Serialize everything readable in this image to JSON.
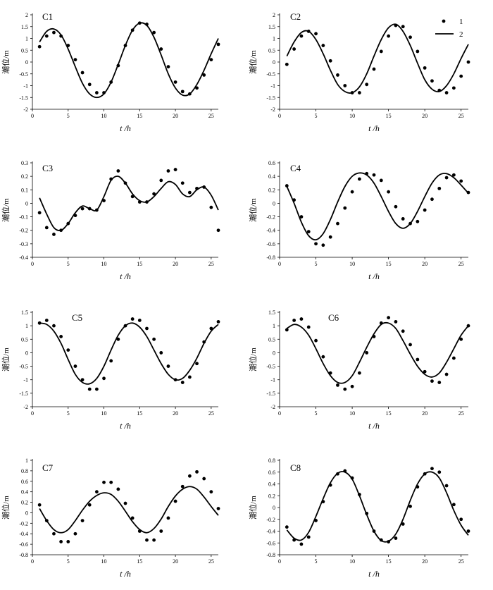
{
  "chart_data": [
    {
      "type": "line",
      "panel": "C1",
      "xlabel": "t /h",
      "ylabel": "潮位/m",
      "xlim": [
        0,
        26
      ],
      "ylim": [
        -2,
        2
      ],
      "yticks": [
        2,
        1.5,
        1,
        0.5,
        0,
        -0.5,
        -1,
        -1.5,
        -2
      ],
      "xticks": [
        0,
        5,
        10,
        15,
        20,
        25
      ],
      "series": [
        {
          "name": "1",
          "kind": "points",
          "x": [
            1,
            2,
            3,
            4,
            5,
            6,
            7,
            8,
            9,
            10,
            11,
            12,
            13,
            14,
            15,
            16,
            17,
            18,
            19,
            20,
            21,
            22,
            23,
            24,
            25,
            26
          ],
          "y": [
            0.65,
            1.1,
            1.25,
            1.1,
            0.7,
            0.1,
            -0.45,
            -0.95,
            -1.3,
            -1.3,
            -0.85,
            -0.15,
            0.7,
            1.35,
            1.65,
            1.6,
            1.25,
            0.55,
            -0.2,
            -0.85,
            -1.25,
            -1.35,
            -1.1,
            -0.55,
            0.1,
            0.75
          ]
        },
        {
          "name": "2",
          "kind": "line",
          "x": [
            1,
            2,
            3,
            4,
            5,
            6,
            7,
            8,
            9,
            10,
            11,
            12,
            13,
            14,
            15,
            16,
            17,
            18,
            19,
            20,
            21,
            22,
            23,
            24,
            25,
            26
          ],
          "y": [
            0.85,
            1.3,
            1.4,
            1.15,
            0.55,
            -0.2,
            -0.9,
            -1.35,
            -1.5,
            -1.35,
            -0.85,
            -0.1,
            0.7,
            1.35,
            1.65,
            1.55,
            1.05,
            0.3,
            -0.5,
            -1.1,
            -1.4,
            -1.35,
            -0.95,
            -0.35,
            0.35,
            1.0
          ]
        }
      ]
    },
    {
      "type": "line",
      "panel": "C2",
      "xlabel": "t /h",
      "ylabel": "潮位/m",
      "xlim": [
        0,
        26
      ],
      "ylim": [
        -2,
        2
      ],
      "yticks": [
        2,
        1.5,
        1,
        0.5,
        0,
        -0.5,
        -1,
        -1.5,
        -2
      ],
      "xticks": [
        0,
        5,
        10,
        15,
        20,
        25
      ],
      "legend": {
        "placement": "top-right",
        "entries": [
          "1",
          "2"
        ]
      },
      "series": [
        {
          "name": "1",
          "kind": "points",
          "x": [
            1,
            2,
            3,
            4,
            5,
            6,
            7,
            8,
            9,
            10,
            11,
            12,
            13,
            14,
            15,
            16,
            17,
            18,
            19,
            20,
            21,
            22,
            23,
            24,
            25,
            26
          ],
          "y": [
            -0.1,
            0.55,
            1.1,
            1.3,
            1.2,
            0.7,
            0.05,
            -0.55,
            -1.0,
            -1.3,
            -1.3,
            -0.95,
            -0.3,
            0.45,
            1.1,
            1.55,
            1.5,
            1.05,
            0.45,
            -0.25,
            -0.8,
            -1.2,
            -1.3,
            -1.1,
            -0.6,
            0.0
          ]
        },
        {
          "name": "2",
          "kind": "line",
          "x": [
            1,
            2,
            3,
            4,
            5,
            6,
            7,
            8,
            9,
            10,
            11,
            12,
            13,
            14,
            15,
            16,
            17,
            18,
            19,
            20,
            21,
            22,
            23,
            24,
            25,
            26
          ],
          "y": [
            0.25,
            0.85,
            1.25,
            1.3,
            0.95,
            0.35,
            -0.35,
            -0.95,
            -1.25,
            -1.3,
            -1.05,
            -0.5,
            0.25,
            0.95,
            1.45,
            1.6,
            1.3,
            0.7,
            -0.05,
            -0.75,
            -1.15,
            -1.25,
            -1.0,
            -0.5,
            0.15,
            0.75
          ]
        }
      ]
    },
    {
      "type": "line",
      "panel": "C3",
      "xlabel": "t /h",
      "ylabel": "潮位/m",
      "xlim": [
        0,
        26
      ],
      "ylim": [
        -0.4,
        0.3
      ],
      "yticks": [
        0.3,
        0.2,
        0.1,
        0,
        -0.1,
        -0.2,
        -0.3,
        -0.4
      ],
      "xticks": [
        0,
        5,
        10,
        15,
        20,
        25
      ],
      "series": [
        {
          "name": "1",
          "kind": "points",
          "x": [
            1,
            2,
            3,
            4,
            5,
            6,
            7,
            8,
            9,
            10,
            11,
            12,
            13,
            14,
            15,
            16,
            17,
            18,
            19,
            20,
            21,
            22,
            23,
            24,
            25,
            26
          ],
          "y": [
            -0.07,
            -0.18,
            -0.23,
            -0.2,
            -0.15,
            -0.09,
            -0.04,
            -0.04,
            -0.05,
            0.02,
            0.18,
            0.24,
            0.15,
            0.05,
            0.01,
            0.01,
            0.07,
            0.17,
            0.24,
            0.25,
            0.15,
            0.08,
            0.11,
            0.12,
            -0.03,
            -0.2
          ]
        },
        {
          "name": "2",
          "kind": "line",
          "x": [
            1,
            2,
            3,
            4,
            5,
            6,
            7,
            8,
            9,
            10,
            11,
            12,
            13,
            14,
            15,
            16,
            17,
            18,
            19,
            20,
            21,
            22,
            23,
            24,
            25,
            26
          ],
          "y": [
            0.04,
            -0.08,
            -0.18,
            -0.2,
            -0.15,
            -0.07,
            -0.02,
            -0.04,
            -0.05,
            0.05,
            0.17,
            0.2,
            0.15,
            0.07,
            0.02,
            0.01,
            0.05,
            0.11,
            0.16,
            0.14,
            0.07,
            0.05,
            0.1,
            0.12,
            0.06,
            -0.05
          ]
        }
      ]
    },
    {
      "type": "line",
      "panel": "C4",
      "xlabel": "t /h",
      "ylabel": "潮位/m",
      "xlim": [
        0,
        26
      ],
      "ylim": [
        -0.8,
        0.6
      ],
      "yticks": [
        0.6,
        0.4,
        0.2,
        0,
        -0.2,
        -0.4,
        -0.6,
        -0.8
      ],
      "xticks": [
        0,
        5,
        10,
        15,
        20,
        25
      ],
      "series": [
        {
          "name": "1",
          "kind": "points",
          "x": [
            1,
            2,
            3,
            4,
            5,
            6,
            7,
            8,
            9,
            10,
            11,
            12,
            13,
            14,
            15,
            16,
            17,
            18,
            19,
            20,
            21,
            22,
            23,
            24,
            25,
            26
          ],
          "y": [
            0.26,
            0.05,
            -0.2,
            -0.42,
            -0.6,
            -0.62,
            -0.5,
            -0.3,
            -0.07,
            0.17,
            0.36,
            0.44,
            0.42,
            0.34,
            0.17,
            -0.05,
            -0.23,
            -0.3,
            -0.27,
            -0.1,
            0.06,
            0.22,
            0.38,
            0.42,
            0.33,
            0.16
          ]
        },
        {
          "name": "2",
          "kind": "line",
          "x": [
            1,
            2,
            3,
            4,
            5,
            6,
            7,
            8,
            9,
            10,
            11,
            12,
            13,
            14,
            15,
            16,
            17,
            18,
            19,
            20,
            21,
            22,
            23,
            24,
            25,
            26
          ],
          "y": [
            0.25,
            0.0,
            -0.28,
            -0.48,
            -0.54,
            -0.45,
            -0.24,
            0.02,
            0.25,
            0.4,
            0.45,
            0.42,
            0.3,
            0.1,
            -0.12,
            -0.3,
            -0.37,
            -0.3,
            -0.12,
            0.1,
            0.3,
            0.42,
            0.44,
            0.38,
            0.27,
            0.15
          ]
        }
      ]
    },
    {
      "type": "line",
      "panel": "C5",
      "xlabel": "t /h",
      "ylabel": "潮位/m",
      "xlim": [
        0,
        26
      ],
      "ylim": [
        -2,
        1.5
      ],
      "yticks": [
        1.5,
        1,
        0.5,
        0,
        -0.5,
        -1,
        -1.5,
        -2
      ],
      "xticks": [
        0,
        5,
        10,
        15,
        20,
        25
      ],
      "series": [
        {
          "name": "1",
          "kind": "points",
          "x": [
            1,
            2,
            3,
            4,
            5,
            6,
            7,
            8,
            9,
            10,
            11,
            12,
            13,
            14,
            15,
            16,
            17,
            18,
            19,
            20,
            21,
            22,
            23,
            24,
            25,
            26
          ],
          "y": [
            1.1,
            1.2,
            1.0,
            0.6,
            0.1,
            -0.5,
            -1.0,
            -1.35,
            -1.35,
            -0.95,
            -0.3,
            0.5,
            1.0,
            1.25,
            1.2,
            0.9,
            0.5,
            0.0,
            -0.5,
            -1.0,
            -1.1,
            -0.9,
            -0.4,
            0.4,
            0.9,
            1.15
          ]
        },
        {
          "name": "2",
          "kind": "line",
          "x": [
            1,
            2,
            3,
            4,
            5,
            6,
            7,
            8,
            9,
            10,
            11,
            12,
            13,
            14,
            15,
            16,
            17,
            18,
            19,
            20,
            21,
            22,
            23,
            24,
            25,
            26
          ],
          "y": [
            1.1,
            1.05,
            0.8,
            0.35,
            -0.25,
            -0.8,
            -1.1,
            -1.15,
            -0.95,
            -0.5,
            0.1,
            0.65,
            1.0,
            1.1,
            0.95,
            0.6,
            0.1,
            -0.4,
            -0.8,
            -1.0,
            -0.95,
            -0.65,
            -0.2,
            0.35,
            0.8,
            1.05
          ]
        }
      ]
    },
    {
      "type": "line",
      "panel": "C6",
      "xlabel": "t /h",
      "ylabel": "潮位/m",
      "xlim": [
        0,
        26
      ],
      "ylim": [
        -2,
        1.5
      ],
      "yticks": [
        1.5,
        1,
        0.5,
        0,
        -0.5,
        -1,
        -1.5,
        -2
      ],
      "xticks": [
        0,
        5,
        10,
        15,
        20,
        25
      ],
      "series": [
        {
          "name": "1",
          "kind": "points",
          "x": [
            1,
            2,
            3,
            4,
            5,
            6,
            7,
            8,
            9,
            10,
            11,
            12,
            13,
            14,
            15,
            16,
            17,
            18,
            19,
            20,
            21,
            22,
            23,
            24,
            25,
            26
          ],
          "y": [
            0.85,
            1.2,
            1.25,
            0.95,
            0.45,
            -0.15,
            -0.75,
            -1.2,
            -1.35,
            -1.25,
            -0.75,
            0.0,
            0.6,
            1.1,
            1.3,
            1.15,
            0.8,
            0.3,
            -0.25,
            -0.7,
            -1.05,
            -1.1,
            -0.8,
            -0.2,
            0.5,
            1.0
          ]
        },
        {
          "name": "2",
          "kind": "line",
          "x": [
            1,
            2,
            3,
            4,
            5,
            6,
            7,
            8,
            9,
            10,
            11,
            12,
            13,
            14,
            15,
            16,
            17,
            18,
            19,
            20,
            21,
            22,
            23,
            24,
            25,
            26
          ],
          "y": [
            0.9,
            1.05,
            0.95,
            0.65,
            0.15,
            -0.4,
            -0.85,
            -1.1,
            -1.1,
            -0.85,
            -0.35,
            0.2,
            0.7,
            1.05,
            1.1,
            0.9,
            0.45,
            -0.05,
            -0.5,
            -0.8,
            -0.9,
            -0.75,
            -0.35,
            0.15,
            0.65,
            1.0
          ]
        }
      ]
    },
    {
      "type": "line",
      "panel": "C7",
      "xlabel": "t /h",
      "ylabel": "潮位/m",
      "xlim": [
        0,
        26
      ],
      "ylim": [
        -0.8,
        1
      ],
      "yticks": [
        1,
        0.8,
        0.6,
        0.4,
        0.2,
        0,
        -0.2,
        -0.4,
        -0.6,
        -0.8
      ],
      "xticks": [
        0,
        5,
        10,
        15,
        20,
        25
      ],
      "series": [
        {
          "name": "1",
          "kind": "points",
          "x": [
            1,
            2,
            3,
            4,
            5,
            6,
            7,
            8,
            9,
            10,
            11,
            12,
            13,
            14,
            15,
            16,
            17,
            18,
            19,
            20,
            21,
            22,
            23,
            24,
            25,
            26
          ],
          "y": [
            0.15,
            -0.15,
            -0.4,
            -0.55,
            -0.55,
            -0.4,
            -0.15,
            0.15,
            0.4,
            0.58,
            0.58,
            0.45,
            0.18,
            -0.1,
            -0.35,
            -0.52,
            -0.52,
            -0.35,
            -0.1,
            0.22,
            0.5,
            0.7,
            0.78,
            0.65,
            0.4,
            0.08
          ]
        },
        {
          "name": "2",
          "kind": "line",
          "x": [
            1,
            2,
            3,
            4,
            5,
            6,
            7,
            8,
            9,
            10,
            11,
            12,
            13,
            14,
            15,
            16,
            17,
            18,
            19,
            20,
            21,
            22,
            23,
            24,
            25,
            26
          ],
          "y": [
            0.08,
            -0.15,
            -0.32,
            -0.38,
            -0.32,
            -0.15,
            0.05,
            0.22,
            0.33,
            0.38,
            0.35,
            0.22,
            0.03,
            -0.17,
            -0.32,
            -0.38,
            -0.3,
            -0.12,
            0.12,
            0.32,
            0.45,
            0.5,
            0.45,
            0.3,
            0.12,
            -0.05
          ]
        }
      ]
    },
    {
      "type": "line",
      "panel": "C8",
      "xlabel": "t /h",
      "ylabel": "潮位/m",
      "xlim": [
        0,
        26
      ],
      "ylim": [
        -0.8,
        0.8
      ],
      "yticks": [
        0.8,
        0.6,
        0.4,
        0.2,
        0,
        -0.2,
        -0.4,
        -0.6,
        -0.8
      ],
      "xticks": [
        0,
        5,
        10,
        15,
        20,
        25
      ],
      "series": [
        {
          "name": "1",
          "kind": "points",
          "x": [
            1,
            2,
            3,
            4,
            5,
            6,
            7,
            8,
            9,
            10,
            11,
            12,
            13,
            14,
            15,
            16,
            17,
            18,
            19,
            20,
            21,
            22,
            23,
            24,
            25,
            26
          ],
          "y": [
            -0.33,
            -0.55,
            -0.62,
            -0.5,
            -0.22,
            0.1,
            0.38,
            0.57,
            0.62,
            0.5,
            0.22,
            -0.1,
            -0.4,
            -0.55,
            -0.58,
            -0.52,
            -0.28,
            0.02,
            0.35,
            0.57,
            0.66,
            0.6,
            0.37,
            0.05,
            -0.2,
            -0.4
          ]
        },
        {
          "name": "2",
          "kind": "line",
          "x": [
            1,
            2,
            3,
            4,
            5,
            6,
            7,
            8,
            9,
            10,
            11,
            12,
            13,
            14,
            15,
            16,
            17,
            18,
            19,
            20,
            21,
            22,
            23,
            24,
            25,
            26
          ],
          "y": [
            -0.38,
            -0.52,
            -0.55,
            -0.42,
            -0.15,
            0.15,
            0.42,
            0.58,
            0.6,
            0.48,
            0.2,
            -0.12,
            -0.4,
            -0.56,
            -0.57,
            -0.45,
            -0.2,
            0.12,
            0.4,
            0.57,
            0.6,
            0.5,
            0.25,
            -0.05,
            -0.3,
            -0.47
          ]
        }
      ]
    }
  ]
}
